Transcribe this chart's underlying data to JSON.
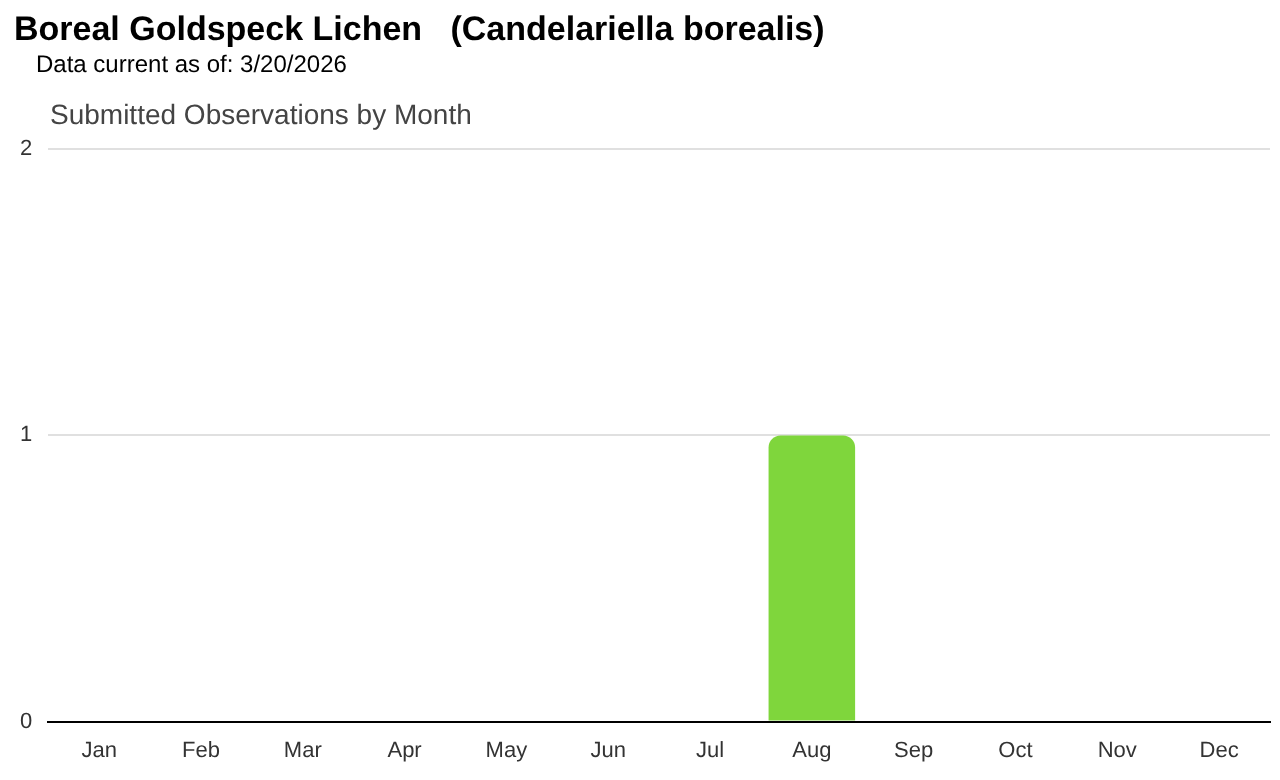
{
  "chart_data": {
    "type": "bar",
    "title": "Boreal Goldspeck Lichen   (Candelariella borealis)",
    "subtitle": "Submitted Observations by Month",
    "annotations": [
      "Data current as of: 3/20/2026"
    ],
    "categories": [
      "Jan",
      "Feb",
      "Mar",
      "Apr",
      "May",
      "Jun",
      "Jul",
      "Aug",
      "Sep",
      "Oct",
      "Nov",
      "Dec"
    ],
    "values": [
      0,
      0,
      0,
      0,
      0,
      0,
      0,
      1,
      0,
      0,
      0,
      0
    ],
    "color": "#7fd63c",
    "ylim": [
      0,
      2
    ],
    "yticks": [
      0,
      1,
      2
    ],
    "grid": "y",
    "legend": false
  }
}
